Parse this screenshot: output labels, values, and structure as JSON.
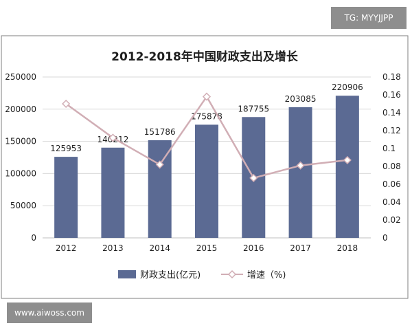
{
  "watermarks": {
    "top_right": "TG: MYYJJPP",
    "bottom_left": "www.aiwoss.com"
  },
  "colors": {
    "bar": "#5b6a93",
    "line": "#d1aeb5",
    "grid": "#d9d9d9",
    "frame": "#7f7f7f",
    "text": "#1f1f1f"
  },
  "chart_data": {
    "type": "bar",
    "title": "2012-2018年中国财政支出及增长",
    "categories": [
      "2012",
      "2013",
      "2014",
      "2015",
      "2016",
      "2017",
      "2018"
    ],
    "series": [
      {
        "name": "财政支出(亿元)",
        "type": "bar",
        "axis": "left",
        "values": [
          125953,
          140212,
          151786,
          175878,
          187755,
          203085,
          220906
        ],
        "data_labels": [
          "125953",
          "140212",
          "151786",
          "175878",
          "187755",
          "203085",
          "220906"
        ]
      },
      {
        "name": "增速（%)",
        "type": "line",
        "marker": "diamond-open",
        "axis": "right",
        "values": [
          0.15,
          0.112,
          0.082,
          0.158,
          0.067,
          0.081,
          0.087
        ]
      }
    ],
    "y_left": {
      "min": 0,
      "max": 250000,
      "ticks": [
        "0",
        "50000",
        "100000",
        "150000",
        "200000",
        "250000"
      ]
    },
    "y_right": {
      "min": 0,
      "max": 0.18,
      "ticks": [
        "0",
        "0.02",
        "0.04",
        "0.06",
        "0.08",
        "0.1",
        "0.12",
        "0.14",
        "0.16",
        "0.18"
      ]
    },
    "grid": true,
    "legend": "bottom"
  }
}
